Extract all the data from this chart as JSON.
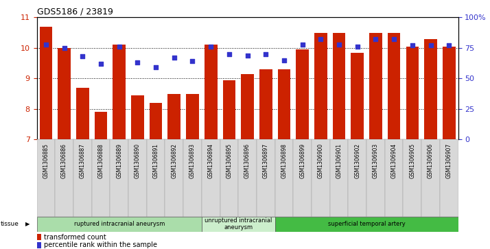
{
  "title": "GDS5186 / 23819",
  "samples": [
    "GSM1306885",
    "GSM1306886",
    "GSM1306887",
    "GSM1306888",
    "GSM1306889",
    "GSM1306890",
    "GSM1306891",
    "GSM1306892",
    "GSM1306893",
    "GSM1306894",
    "GSM1306895",
    "GSM1306896",
    "GSM1306897",
    "GSM1306898",
    "GSM1306899",
    "GSM1306900",
    "GSM1306901",
    "GSM1306902",
    "GSM1306903",
    "GSM1306904",
    "GSM1306905",
    "GSM1306906",
    "GSM1306907"
  ],
  "bar_values": [
    10.7,
    10.0,
    8.7,
    7.9,
    10.1,
    8.45,
    8.2,
    8.5,
    8.5,
    10.1,
    8.95,
    9.15,
    9.3,
    9.3,
    9.95,
    10.5,
    10.5,
    9.85,
    10.5,
    10.5,
    10.05,
    10.3,
    10.05
  ],
  "dot_values": [
    78,
    75,
    68,
    62,
    76,
    63,
    59,
    67,
    64,
    76,
    70,
    69,
    70,
    65,
    78,
    82,
    78,
    76,
    82,
    82,
    77,
    77,
    77
  ],
  "bar_color": "#cc2200",
  "dot_color": "#3333cc",
  "ylim_left": [
    7,
    11
  ],
  "ylim_right": [
    0,
    100
  ],
  "yticks_left": [
    7,
    8,
    9,
    10,
    11
  ],
  "yticks_right": [
    0,
    25,
    50,
    75,
    100
  ],
  "ytick_labels_right": [
    "0",
    "25",
    "50",
    "75",
    "100%"
  ],
  "groups": [
    {
      "label": "ruptured intracranial aneurysm",
      "start": 0,
      "end": 9,
      "color": "#aaddaa"
    },
    {
      "label": "unruptured intracranial\naneurysm",
      "start": 9,
      "end": 13,
      "color": "#cceecc"
    },
    {
      "label": "superficial temporal artery",
      "start": 13,
      "end": 23,
      "color": "#44bb44"
    }
  ],
  "tissue_label": "tissue",
  "legend_bar_label": "transformed count",
  "legend_dot_label": "percentile rank within the sample",
  "background_color": "#ffffff",
  "xticklabel_bg": "#d8d8d8"
}
